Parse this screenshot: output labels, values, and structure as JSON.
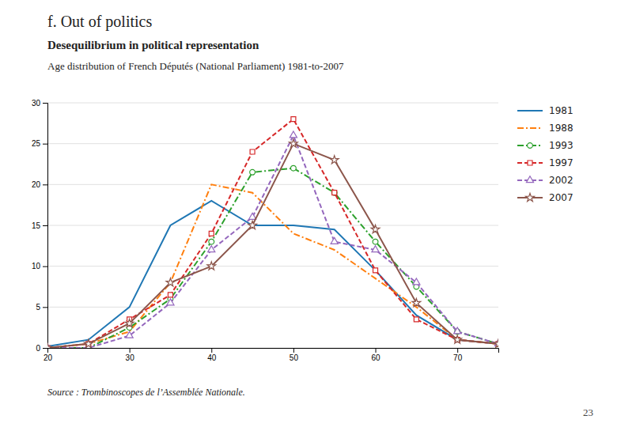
{
  "chart_data": {
    "type": "line",
    "title": "f. Out of politics",
    "subtitle": "Desequilibrium in political representation",
    "annotations": [
      "Age distribution of French Députés (National Parliament) 1981-to-2007",
      "Source : Trombinoscopes de l’Assemblée Nationale.",
      "23"
    ],
    "x": [
      20,
      25,
      30,
      35,
      40,
      45,
      50,
      55,
      60,
      65,
      70,
      75
    ],
    "series": [
      {
        "name": "1981",
        "line_style": "solid",
        "marker": "none",
        "values": [
          0.2,
          1.0,
          5.0,
          15.0,
          18.0,
          15.0,
          15.0,
          14.5,
          9.5,
          4.0,
          1.0,
          0.5
        ]
      },
      {
        "name": "1988",
        "line_style": "dashdot",
        "marker": "none",
        "values": [
          0.0,
          0.5,
          2.0,
          8.0,
          20.0,
          19.0,
          14.0,
          12.0,
          8.5,
          5.0,
          1.0,
          0.5
        ]
      },
      {
        "name": "1993",
        "line_style": "dashdot",
        "marker": "circle",
        "values": [
          0.0,
          0.0,
          2.5,
          6.0,
          13.0,
          21.5,
          22.0,
          19.0,
          13.0,
          7.5,
          2.0,
          0.5
        ]
      },
      {
        "name": "1997",
        "line_style": "dashed",
        "marker": "square",
        "values": [
          0.0,
          0.5,
          3.5,
          6.5,
          14.0,
          24.0,
          28.0,
          19.0,
          9.5,
          3.5,
          1.0,
          0.5
        ]
      },
      {
        "name": "2002",
        "line_style": "dashed",
        "marker": "triangle",
        "values": [
          0.0,
          0.0,
          1.5,
          5.5,
          12.0,
          16.0,
          26.0,
          13.0,
          12.0,
          8.0,
          2.0,
          0.5
        ]
      },
      {
        "name": "2007",
        "line_style": "solid",
        "marker": "star",
        "values": [
          0.0,
          0.5,
          3.0,
          8.0,
          10.0,
          15.0,
          25.0,
          23.0,
          14.5,
          5.5,
          1.0,
          0.5
        ]
      }
    ],
    "xlim": [
      20,
      75
    ],
    "ylim": [
      0,
      30
    ],
    "xticks": [
      20,
      30,
      40,
      50,
      60,
      70
    ],
    "yticks": [
      0,
      5,
      10,
      15,
      20,
      25,
      30
    ],
    "grid": true,
    "legend": "right"
  }
}
